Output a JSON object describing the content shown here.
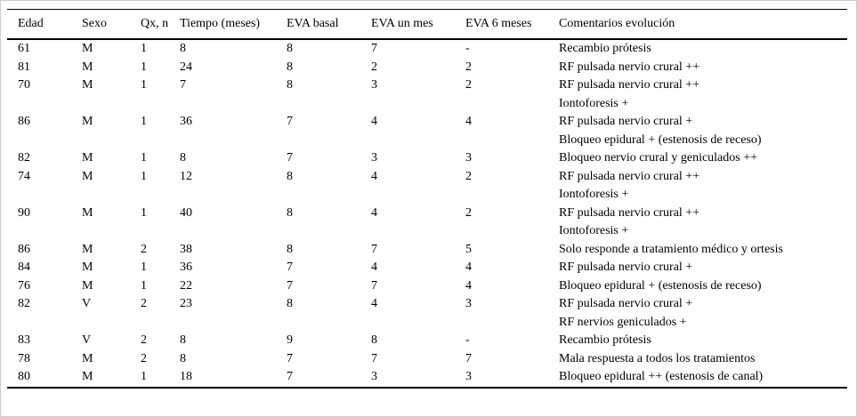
{
  "table": {
    "columns": [
      "Edad",
      "Sexo",
      "Qx, n",
      "Tiempo (meses)",
      "EVA basal",
      "EVA un mes",
      "EVA 6 meses",
      "Comentarios evolución"
    ],
    "rows": [
      {
        "edad": "61",
        "sexo": "M",
        "qx": "1",
        "tiempo": "8",
        "eva_basal": "8",
        "eva_un_mes": "7",
        "eva_6_meses": "-",
        "comentarios": [
          "Recambio prótesis"
        ]
      },
      {
        "edad": "81",
        "sexo": "M",
        "qx": "1",
        "tiempo": "24",
        "eva_basal": "8",
        "eva_un_mes": "2",
        "eva_6_meses": "2",
        "comentarios": [
          "RF pulsada nervio crural ++"
        ]
      },
      {
        "edad": "70",
        "sexo": "M",
        "qx": "1",
        "tiempo": "7",
        "eva_basal": "8",
        "eva_un_mes": "3",
        "eva_6_meses": "2",
        "comentarios": [
          "RF pulsada nervio crural ++",
          "Iontoforesis +"
        ]
      },
      {
        "edad": "86",
        "sexo": "M",
        "qx": "1",
        "tiempo": "36",
        "eva_basal": "7",
        "eva_un_mes": "4",
        "eva_6_meses": "4",
        "comentarios": [
          "RF pulsada nervio crural +",
          "Bloqueo epidural + (estenosis de receso)"
        ]
      },
      {
        "edad": "82",
        "sexo": "M",
        "qx": "1",
        "tiempo": "8",
        "eva_basal": "7",
        "eva_un_mes": "3",
        "eva_6_meses": "3",
        "comentarios": [
          "Bloqueo nervio crural y geniculados ++"
        ]
      },
      {
        "edad": "74",
        "sexo": "M",
        "qx": "1",
        "tiempo": "12",
        "eva_basal": "8",
        "eva_un_mes": "4",
        "eva_6_meses": "2",
        "comentarios": [
          "RF pulsada nervio crural ++",
          "Iontoforesis +"
        ]
      },
      {
        "edad": "90",
        "sexo": "M",
        "qx": "1",
        "tiempo": "40",
        "eva_basal": "8",
        "eva_un_mes": "4",
        "eva_6_meses": "2",
        "comentarios": [
          "RF pulsada nervio crural ++",
          "Iontoforesis +"
        ]
      },
      {
        "edad": "86",
        "sexo": "M",
        "qx": "2",
        "tiempo": "38",
        "eva_basal": "8",
        "eva_un_mes": "7",
        "eva_6_meses": "5",
        "comentarios": [
          "Solo responde a tratamiento médico y ortesis"
        ]
      },
      {
        "edad": "84",
        "sexo": "M",
        "qx": "1",
        "tiempo": "36",
        "eva_basal": "7",
        "eva_un_mes": "4",
        "eva_6_meses": "4",
        "comentarios": [
          "RF pulsada nervio crural +"
        ]
      },
      {
        "edad": "76",
        "sexo": "M",
        "qx": "1",
        "tiempo": "22",
        "eva_basal": "7",
        "eva_un_mes": "7",
        "eva_6_meses": "4",
        "comentarios": [
          "Bloqueo epidural + (estenosis de receso)"
        ]
      },
      {
        "edad": "82",
        "sexo": "V",
        "qx": "2",
        "tiempo": "23",
        "eva_basal": "8",
        "eva_un_mes": "4",
        "eva_6_meses": "3",
        "comentarios": [
          "RF pulsada nervio crural +",
          "RF nervios geniculados +"
        ]
      },
      {
        "edad": "83",
        "sexo": "V",
        "qx": "2",
        "tiempo": "8",
        "eva_basal": "9",
        "eva_un_mes": "8",
        "eva_6_meses": "-",
        "comentarios": [
          "Recambio prótesis"
        ]
      },
      {
        "edad": "78",
        "sexo": "M",
        "qx": "2",
        "tiempo": "8",
        "eva_basal": "7",
        "eva_un_mes": "7",
        "eva_6_meses": "7",
        "comentarios": [
          "Mala respuesta a todos los tratamientos"
        ]
      },
      {
        "edad": "80",
        "sexo": "M",
        "qx": "1",
        "tiempo": "18",
        "eva_basal": "7",
        "eva_un_mes": "3",
        "eva_6_meses": "3",
        "comentarios": [
          "Bloqueo epidural ++ (estenosis de canal)"
        ]
      }
    ]
  }
}
